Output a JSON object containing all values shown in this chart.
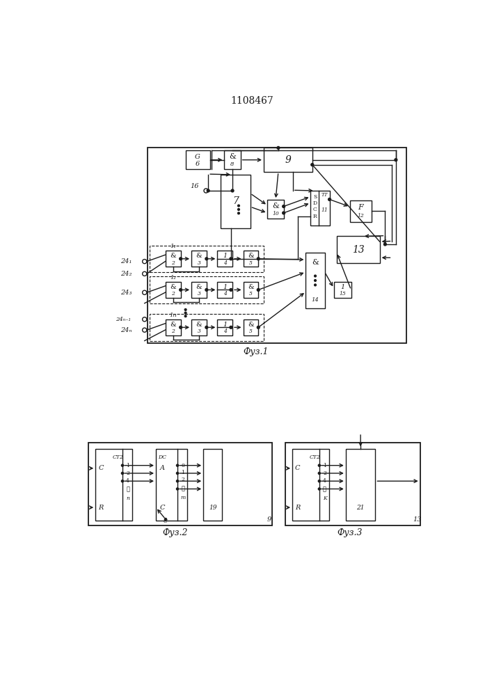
{
  "title": "1108467",
  "bg_color": "#ffffff",
  "line_color": "#1a1a1a",
  "fig1_caption": "Фуз.1",
  "fig2_caption": "Фуз.2",
  "fig3_caption": "Фуз.3"
}
